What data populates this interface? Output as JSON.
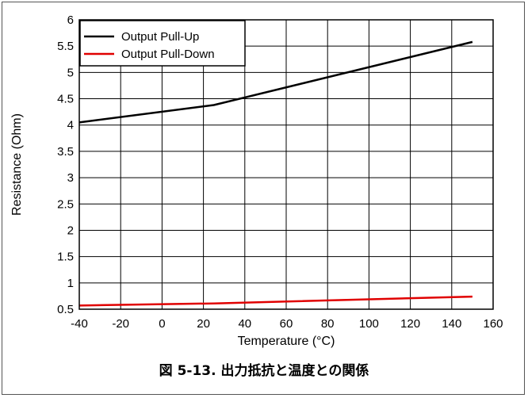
{
  "chart_data": {
    "type": "line",
    "xlabel": "Temperature (°C)",
    "ylabel": "Resistance (Ohm)",
    "xlim": [
      -40,
      160
    ],
    "ylim": [
      0.5,
      6
    ],
    "xticks": [
      -40,
      -20,
      0,
      20,
      40,
      60,
      80,
      100,
      120,
      140,
      160
    ],
    "yticks": [
      0.5,
      1,
      1.5,
      2,
      2.5,
      3,
      3.5,
      4,
      4.5,
      5,
      5.5,
      6
    ],
    "ytick_labels": [
      "0.5",
      "1",
      "1.5",
      "2",
      "2.5",
      "3",
      "3.5",
      "4",
      "4.5",
      "5",
      "5.5",
      "6"
    ],
    "grid": true,
    "legend": "top-left",
    "series": [
      {
        "name": "Output Pull-Up",
        "color": "#000000",
        "x": [
          -40,
          25,
          150
        ],
        "y": [
          4.05,
          4.38,
          5.58
        ]
      },
      {
        "name": "Output Pull-Down",
        "color": "#e00000",
        "x": [
          -40,
          25,
          150
        ],
        "y": [
          0.57,
          0.61,
          0.74
        ]
      }
    ]
  },
  "caption": "図 5-13. 出力抵抗と温度との関係"
}
